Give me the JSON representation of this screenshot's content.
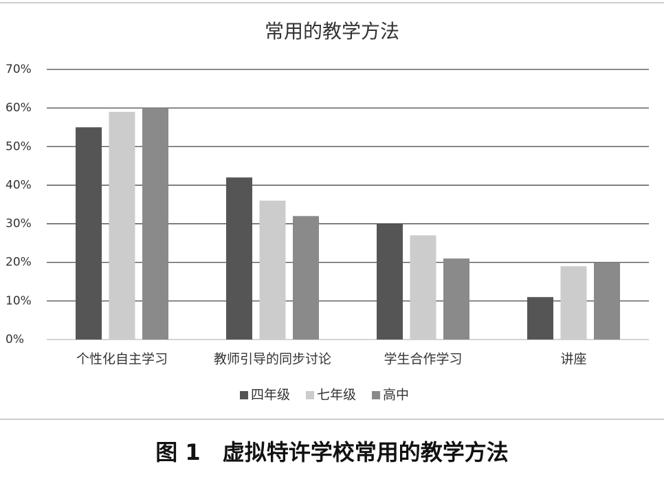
{
  "chart_data": {
    "type": "bar",
    "title": "常用的教学方法",
    "categories": [
      "个性化自主学习",
      "教师引导的同步讨论",
      "学生合作学习",
      "讲座"
    ],
    "series": [
      {
        "name": "四年级",
        "color": "#555555",
        "values": [
          55,
          42,
          30,
          11
        ]
      },
      {
        "name": "七年级",
        "color": "#cccccc",
        "values": [
          59,
          36,
          27,
          19
        ]
      },
      {
        "name": "高中",
        "color": "#8a8a8a",
        "values": [
          60,
          32,
          21,
          20
        ]
      }
    ],
    "ylim": [
      0,
      70
    ],
    "yticks": [
      {
        "value": 0,
        "label": "0%"
      },
      {
        "value": 10,
        "label": "10%"
      },
      {
        "value": 20,
        "label": "20%"
      },
      {
        "value": 30,
        "label": "30%"
      },
      {
        "value": 40,
        "label": "40%"
      },
      {
        "value": 50,
        "label": "50%"
      },
      {
        "value": 60,
        "label": "60%"
      },
      {
        "value": 70,
        "label": "70%"
      }
    ],
    "grid": true,
    "legend": "bottom"
  },
  "caption": "图 1　虚拟特许学校常用的教学方法"
}
